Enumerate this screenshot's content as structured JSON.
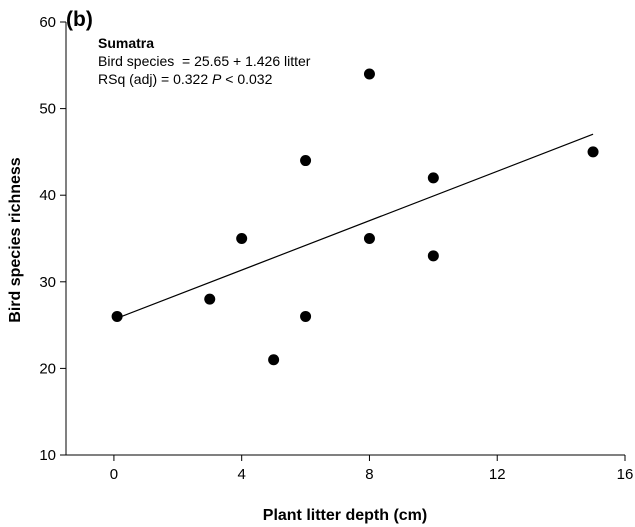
{
  "chart_data": {
    "type": "scatter",
    "panel_label": "(b)",
    "xlabel": "Plant litter depth (cm)",
    "ylabel": "Bird species richness",
    "xlim": [
      -1.5,
      16
    ],
    "ylim": [
      10,
      60
    ],
    "xticks": [
      0,
      4,
      8,
      12,
      16
    ],
    "yticks": [
      10,
      20,
      30,
      40,
      50,
      60
    ],
    "grid": false,
    "points": [
      {
        "x": 0.1,
        "y": 26
      },
      {
        "x": 3,
        "y": 28
      },
      {
        "x": 4,
        "y": 35
      },
      {
        "x": 5,
        "y": 21
      },
      {
        "x": 6,
        "y": 44
      },
      {
        "x": 6,
        "y": 26
      },
      {
        "x": 8,
        "y": 54
      },
      {
        "x": 8,
        "y": 35
      },
      {
        "x": 10,
        "y": 42
      },
      {
        "x": 10,
        "y": 33
      },
      {
        "x": 15,
        "y": 45
      }
    ],
    "fit_line": {
      "intercept": 25.65,
      "slope": 1.426,
      "x_range": [
        0.1,
        15
      ]
    },
    "annotation": {
      "title": "Sumatra",
      "equation": "Bird species  = 25.65 + 1.426 litter",
      "stats_prefix": "RSq (adj) = 0.322 ",
      "stats_p": "P",
      "stats_suffix": " < 0.032"
    }
  }
}
